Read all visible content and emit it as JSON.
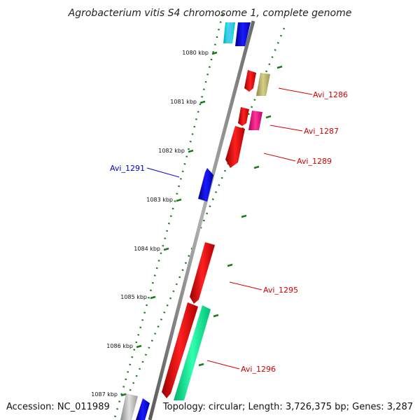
{
  "title": "Agrobacterium vitis S4 chromosome 1, complete genome",
  "footer": {
    "accession": "Accession: NC_011989",
    "topology": "Topology: circular; Length: 3,726,375 bp; Genes: 3,287"
  },
  "kbp_ticks": [
    {
      "label": "1080 kbp",
      "kbp": 1080
    },
    {
      "label": "1081 kbp",
      "kbp": 1081
    },
    {
      "label": "1082 kbp",
      "kbp": 1082
    },
    {
      "label": "1083 kbp",
      "kbp": 1083
    },
    {
      "label": "1084 kbp",
      "kbp": 1084
    },
    {
      "label": "1085 kbp",
      "kbp": 1085
    },
    {
      "label": "1086 kbp",
      "kbp": 1086
    },
    {
      "label": "1087 kbp",
      "kbp": 1087
    }
  ],
  "gene_labels": [
    {
      "name": "Avi_1286",
      "color": "#d40000"
    },
    {
      "name": "Avi_1287",
      "color": "#d40000"
    },
    {
      "name": "Avi_1289",
      "color": "#d40000"
    },
    {
      "name": "Avi_1291",
      "color": "#0000c8"
    },
    {
      "name": "Avi_1295",
      "color": "#d40000"
    },
    {
      "name": "Avi_1296",
      "color": "#d40000"
    }
  ],
  "colors": {
    "backbone": "#8a8a8a",
    "tick_dots": "#1a7a1a",
    "gene_red": "#ff0000",
    "gene_blue": "#0000ff",
    "gene_cyan": "#00ffff",
    "gene_khaki": "#bdb76b",
    "gene_magenta": "#ff1493",
    "gene_green": "#00ff99",
    "gene_grey": "#bbbbbb"
  }
}
